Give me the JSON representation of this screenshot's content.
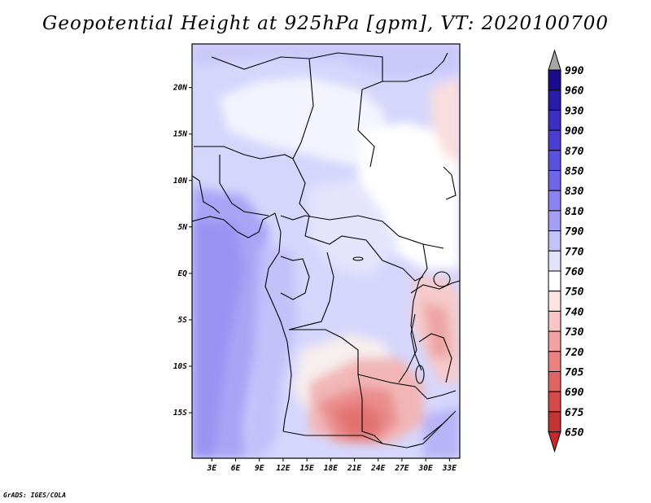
{
  "map": {
    "title": "Geopotential Height at 925hPa [gpm], VT: 2020100700",
    "credit": "GrADS: IGES/COLA",
    "lat_labels": [
      "20N",
      "15N",
      "10N",
      "5N",
      "EQ",
      "5S",
      "10S",
      "15S"
    ],
    "lat_values": [
      20,
      15,
      10,
      5,
      0,
      -5,
      -10,
      -15
    ],
    "lon_labels": [
      "3E",
      "6E",
      "9E",
      "12E",
      "15E",
      "18E",
      "21E",
      "24E",
      "27E",
      "30E",
      "33E"
    ],
    "lon_values": [
      3,
      6,
      9,
      12,
      15,
      18,
      21,
      24,
      27,
      30,
      33
    ],
    "extent": {
      "lon": [
        0.5,
        34.3
      ],
      "lat": [
        -19.9,
        24.7
      ]
    }
  },
  "colorbar": {
    "levels": [
      "990",
      "960",
      "930",
      "900",
      "870",
      "850",
      "830",
      "810",
      "790",
      "770",
      "760",
      "750",
      "740",
      "730",
      "720",
      "705",
      "690",
      "675",
      "650"
    ],
    "colors": [
      "#1a0a8c",
      "#2a1aa8",
      "#3c2ec0",
      "#4a3ed0",
      "#5a52dc",
      "#6e66e6",
      "#8a82f0",
      "#a59ef6",
      "#c5c2fa",
      "#e2e2fc",
      "#ffffff",
      "#fde4e4",
      "#f9c4c4",
      "#f2a2a2",
      "#ea8282",
      "#e06464",
      "#d44a4a",
      "#c23434",
      "#a82020"
    ],
    "top_arrow_color": "#a6a6a6",
    "bottom_arrow_color": "#c8282a"
  }
}
